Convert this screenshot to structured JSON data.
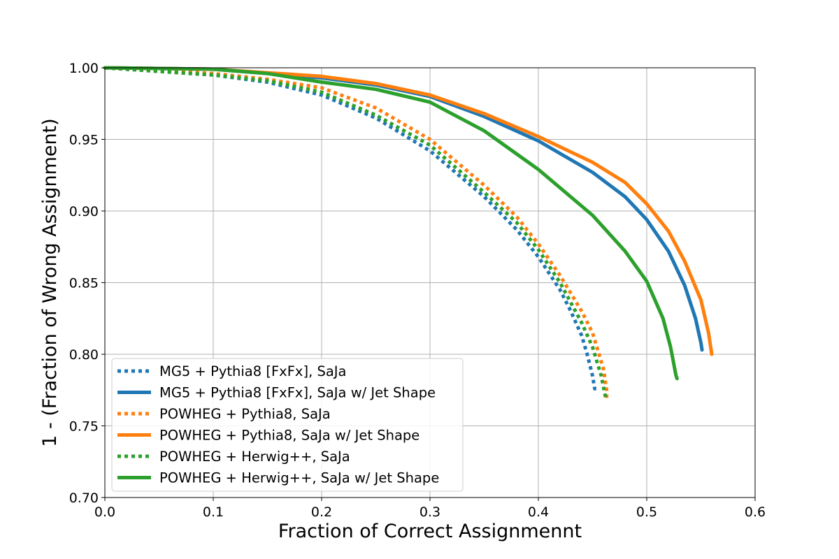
{
  "chart_data": {
    "type": "line",
    "title": "",
    "xlabel": "Fraction of Correct Assignmennt",
    "ylabel": "1 - (Fraction of Wrong Assignment)",
    "xlim": [
      0.0,
      0.6
    ],
    "ylim": [
      0.7,
      1.0
    ],
    "xticks": [
      0.0,
      0.1,
      0.2,
      0.3,
      0.4,
      0.5,
      0.6
    ],
    "xtick_labels": [
      "0.0",
      "0.1",
      "0.2",
      "0.3",
      "0.4",
      "0.5",
      "0.6"
    ],
    "yticks": [
      0.7,
      0.75,
      0.8,
      0.85,
      0.9,
      0.95,
      1.0
    ],
    "ytick_labels": [
      "0.70",
      "0.75",
      "0.80",
      "0.85",
      "0.90",
      "0.95",
      "1.00"
    ],
    "grid": true,
    "legend_position": "lower-left",
    "series": [
      {
        "name": "MG5 + Pythia8 [FxFx], SaJa",
        "color": "#1f77b4",
        "style": "dotted",
        "points": [
          [
            0.0,
            1.0
          ],
          [
            0.1,
            0.995
          ],
          [
            0.15,
            0.99
          ],
          [
            0.2,
            0.981
          ],
          [
            0.25,
            0.965
          ],
          [
            0.3,
            0.942
          ],
          [
            0.35,
            0.91
          ],
          [
            0.38,
            0.887
          ],
          [
            0.4,
            0.868
          ],
          [
            0.42,
            0.845
          ],
          [
            0.43,
            0.83
          ],
          [
            0.44,
            0.813
          ],
          [
            0.445,
            0.8
          ],
          [
            0.45,
            0.785
          ],
          [
            0.452,
            0.776
          ],
          [
            0.455,
            0.776
          ]
        ]
      },
      {
        "name": "MG5 + Pythia8 [FxFx], SaJa w/ Jet Shape",
        "color": "#1f77b4",
        "style": "solid",
        "points": [
          [
            0.0,
            1.0
          ],
          [
            0.1,
            0.999
          ],
          [
            0.2,
            0.993
          ],
          [
            0.25,
            0.988
          ],
          [
            0.3,
            0.98
          ],
          [
            0.35,
            0.966
          ],
          [
            0.4,
            0.949
          ],
          [
            0.45,
            0.927
          ],
          [
            0.48,
            0.91
          ],
          [
            0.5,
            0.894
          ],
          [
            0.52,
            0.872
          ],
          [
            0.535,
            0.848
          ],
          [
            0.545,
            0.825
          ],
          [
            0.55,
            0.808
          ],
          [
            0.551,
            0.803
          ]
        ]
      },
      {
        "name": "POWHEG + Pythia8, SaJa",
        "color": "#ff7f0e",
        "style": "dotted",
        "points": [
          [
            0.0,
            1.0
          ],
          [
            0.1,
            0.996
          ],
          [
            0.15,
            0.992
          ],
          [
            0.2,
            0.986
          ],
          [
            0.25,
            0.972
          ],
          [
            0.3,
            0.95
          ],
          [
            0.35,
            0.918
          ],
          [
            0.38,
            0.896
          ],
          [
            0.4,
            0.877
          ],
          [
            0.42,
            0.855
          ],
          [
            0.44,
            0.83
          ],
          [
            0.45,
            0.815
          ],
          [
            0.46,
            0.79
          ],
          [
            0.463,
            0.775
          ],
          [
            0.463,
            0.768
          ]
        ]
      },
      {
        "name": "POWHEG + Pythia8, SaJa w/ Jet Shape",
        "color": "#ff7f0e",
        "style": "solid",
        "points": [
          [
            0.0,
            1.0
          ],
          [
            0.1,
            0.999
          ],
          [
            0.2,
            0.994
          ],
          [
            0.25,
            0.989
          ],
          [
            0.3,
            0.981
          ],
          [
            0.35,
            0.968
          ],
          [
            0.4,
            0.952
          ],
          [
            0.45,
            0.934
          ],
          [
            0.48,
            0.92
          ],
          [
            0.5,
            0.905
          ],
          [
            0.52,
            0.886
          ],
          [
            0.535,
            0.865
          ],
          [
            0.55,
            0.838
          ],
          [
            0.557,
            0.815
          ],
          [
            0.56,
            0.8
          ]
        ]
      },
      {
        "name": "POWHEG + Herwig++, SaJa",
        "color": "#2ca02c",
        "style": "dotted",
        "points": [
          [
            0.0,
            1.0
          ],
          [
            0.1,
            0.995
          ],
          [
            0.15,
            0.991
          ],
          [
            0.2,
            0.983
          ],
          [
            0.25,
            0.967
          ],
          [
            0.3,
            0.946
          ],
          [
            0.35,
            0.913
          ],
          [
            0.38,
            0.892
          ],
          [
            0.4,
            0.873
          ],
          [
            0.42,
            0.85
          ],
          [
            0.44,
            0.822
          ],
          [
            0.45,
            0.805
          ],
          [
            0.458,
            0.785
          ],
          [
            0.462,
            0.77
          ]
        ]
      },
      {
        "name": "POWHEG + Herwig++, SaJa w/ Jet Shape",
        "color": "#2ca02c",
        "style": "solid",
        "points": [
          [
            0.0,
            1.0
          ],
          [
            0.1,
            0.999
          ],
          [
            0.15,
            0.996
          ],
          [
            0.2,
            0.99
          ],
          [
            0.25,
            0.985
          ],
          [
            0.3,
            0.976
          ],
          [
            0.35,
            0.956
          ],
          [
            0.4,
            0.929
          ],
          [
            0.45,
            0.897
          ],
          [
            0.48,
            0.872
          ],
          [
            0.5,
            0.851
          ],
          [
            0.515,
            0.825
          ],
          [
            0.522,
            0.805
          ],
          [
            0.527,
            0.785
          ],
          [
            0.528,
            0.783
          ]
        ]
      }
    ]
  }
}
